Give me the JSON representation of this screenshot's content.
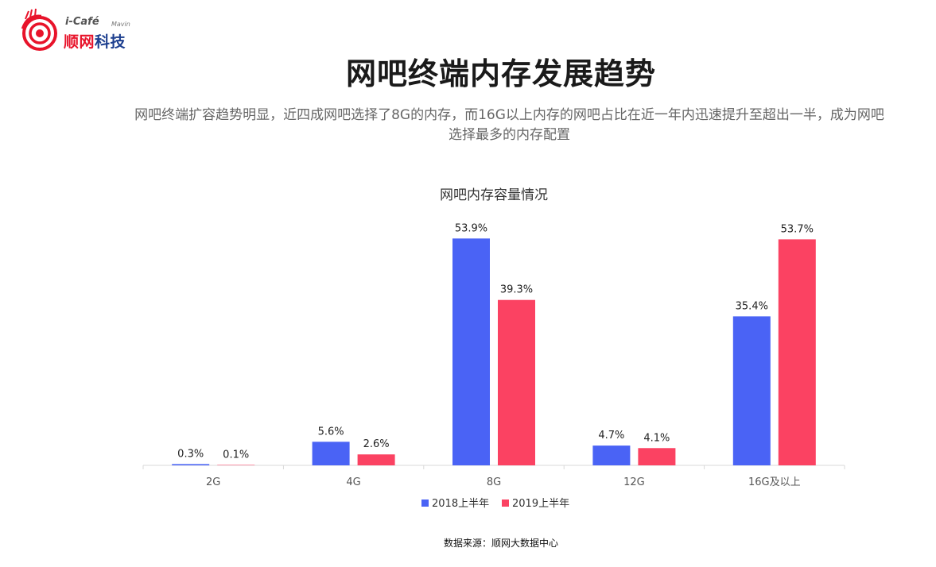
{
  "header": {
    "logo": {
      "brand_prefix": "i-Café",
      "brand_suffix": "Mavin",
      "name_part1": "顺网",
      "name_part2": "科技",
      "colors": {
        "red": "#e8132a",
        "blue": "#1d3f8f"
      },
      "icon": "target-swirl-logo-icon"
    },
    "title": "网吧终端内存发展趋势",
    "subtitle": "网吧终端扩容趋势明显，近四成网吧选择了8G的内存，而16G以上内存的网吧占比在近一年内迅速提升至超出一半，成为网吧选择最多的内存配置"
  },
  "chart_data": {
    "type": "bar",
    "title": "网吧内存容量情况",
    "categories": [
      "2G",
      "4G",
      "8G",
      "12G",
      "16G及以上"
    ],
    "series": [
      {
        "name": "2018上半年",
        "values": [
          0.3,
          5.6,
          53.9,
          4.7,
          35.4
        ],
        "labels": [
          "0.3%",
          "5.6%",
          "53.9%",
          "4.7%",
          "35.4%"
        ],
        "color": "#4a63f5"
      },
      {
        "name": "2019上半年",
        "values": [
          0.1,
          2.6,
          39.3,
          4.1,
          53.7
        ],
        "labels": [
          "0.1%",
          "2.6%",
          "39.3%",
          "4.1%",
          "53.7%"
        ],
        "color": "#fb4262"
      }
    ],
    "ylim": [
      0,
      60
    ],
    "grid": false,
    "legend_position": "bottom"
  },
  "footer": {
    "source": "数据来源：顺网大数据中心"
  }
}
